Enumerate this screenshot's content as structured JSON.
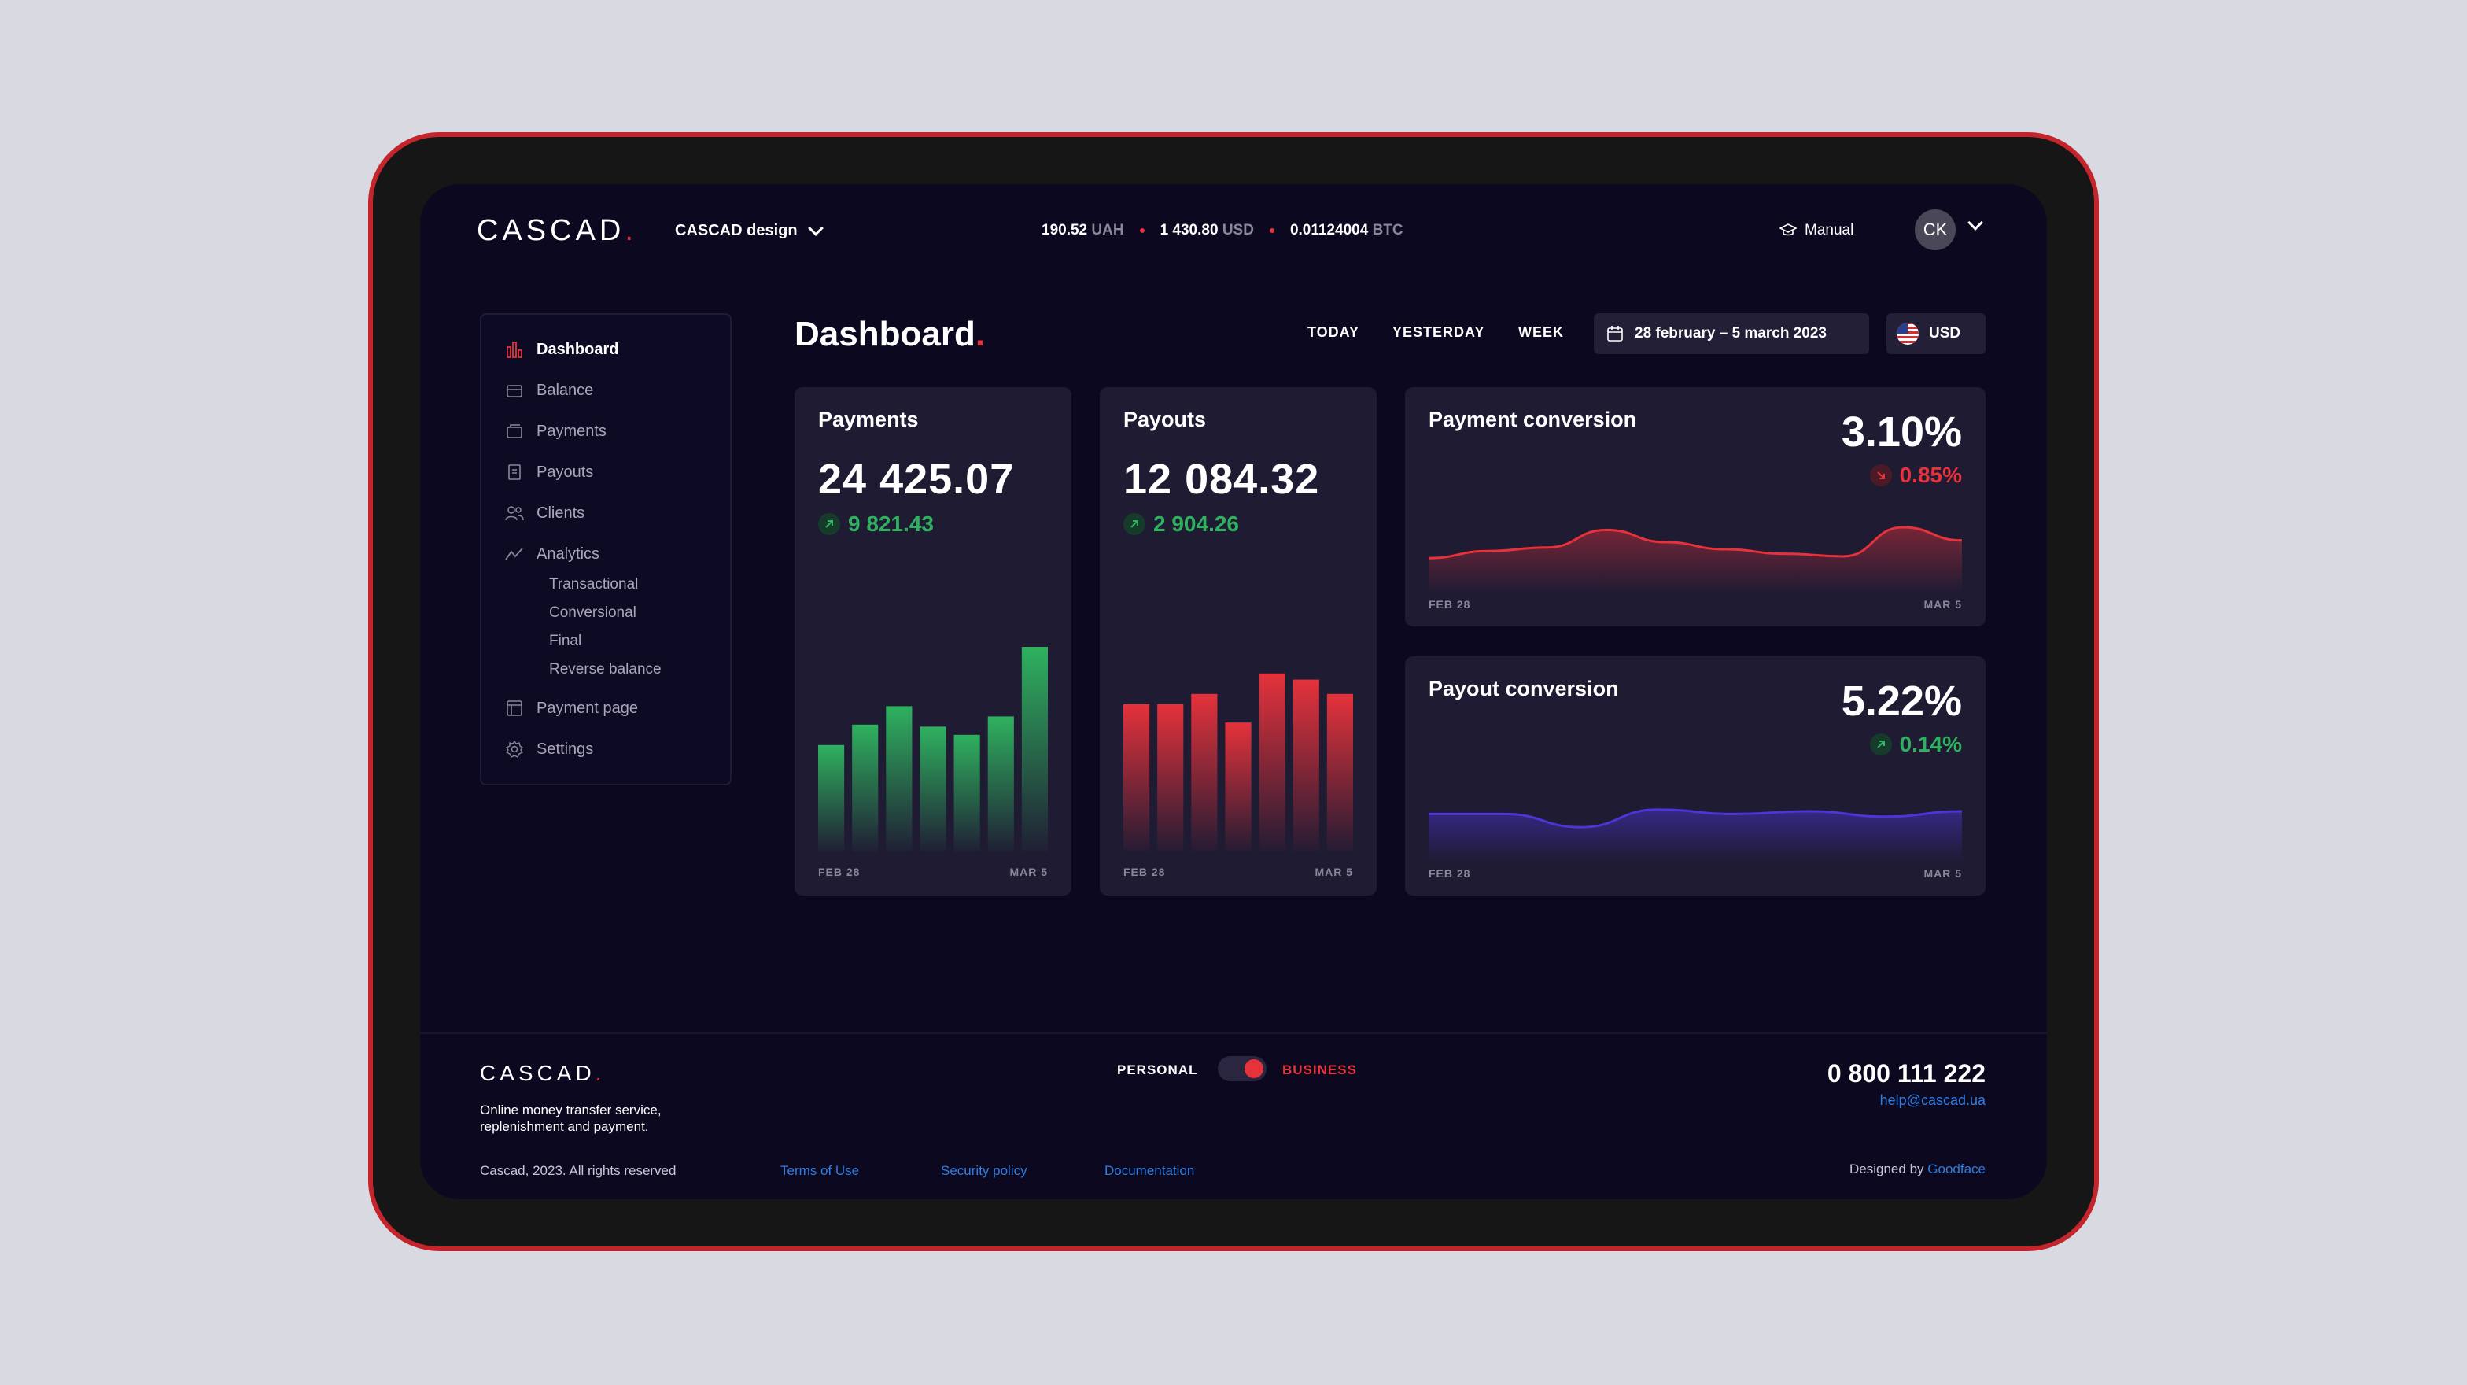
{
  "header": {
    "logo": "CASCAD",
    "logo_dot": ".",
    "organization": "CASCAD design",
    "balances": [
      {
        "amount": "190.52",
        "currency": "UAH"
      },
      {
        "amount": "1 430.80",
        "currency": "USD"
      },
      {
        "amount": "0.01124004",
        "currency": "BTC"
      }
    ],
    "manual_label": "Manual",
    "avatar_initials": "CK"
  },
  "sidebar": {
    "items": [
      {
        "label": "Dashboard",
        "icon": "bar-chart-icon"
      },
      {
        "label": "Balance",
        "icon": "wallet-icon"
      },
      {
        "label": "Payments",
        "icon": "payments-icon"
      },
      {
        "label": "Payouts",
        "icon": "receipt-icon"
      },
      {
        "label": "Clients",
        "icon": "users-icon"
      },
      {
        "label": "Analytics",
        "icon": "trend-icon"
      },
      {
        "label": "Payment page",
        "icon": "page-icon"
      },
      {
        "label": "Settings",
        "icon": "gear-icon"
      }
    ],
    "analytics_subitems": [
      "Transactional",
      "Conversional",
      "Final",
      "Reverse balance"
    ]
  },
  "main": {
    "title": "Dashboard",
    "title_dot": ".",
    "filters": [
      "TODAY",
      "YESTERDAY",
      "WEEK"
    ],
    "date_range": "28 february – 5 march 2023",
    "currency": "USD"
  },
  "cards": {
    "payments": {
      "title": "Payments",
      "value": "24 425.07",
      "delta": "9 821.43",
      "x_start": "FEB 28",
      "x_end": "MAR 5"
    },
    "payouts": {
      "title": "Payouts",
      "value": "12 084.32",
      "delta": "2 904.26",
      "x_start": "FEB 28",
      "x_end": "MAR 5"
    },
    "payment_conversion": {
      "title": "Payment conversion",
      "value": "3.10%",
      "delta": "0.85%",
      "x_start": "FEB 28",
      "x_end": "MAR 5"
    },
    "payout_conversion": {
      "title": "Payout conversion",
      "value": "5.22%",
      "delta": "0.14%",
      "x_start": "FEB 28",
      "x_end": "MAR 5"
    }
  },
  "chart_data": [
    {
      "type": "bar",
      "name": "payments",
      "values": [
        52,
        62,
        71,
        61,
        57,
        66,
        100
      ],
      "ylim": [
        0,
        100
      ],
      "color": "#2fb15f"
    },
    {
      "type": "bar",
      "name": "payouts",
      "values": [
        72,
        72,
        77,
        63,
        87,
        84,
        77
      ],
      "ylim": [
        0,
        100
      ],
      "color": "#e5323b"
    },
    {
      "type": "area",
      "name": "payment_conversion",
      "values": [
        40,
        48,
        52,
        72,
        58,
        50,
        45,
        42,
        75,
        60
      ],
      "ylim": [
        0,
        100
      ],
      "color": "#e5323b"
    },
    {
      "type": "area",
      "name": "payout_conversion",
      "values": [
        55,
        55,
        40,
        60,
        55,
        58,
        52,
        58
      ],
      "ylim": [
        0,
        100
      ],
      "color": "#4b35d6"
    }
  ],
  "footer": {
    "logo": "CASCAD",
    "logo_dot": ".",
    "description": "Online money transfer service, replenishment and payment.",
    "copyright": "Cascad, 2023. All rights reserved",
    "links": [
      "Terms of Use",
      "Security policy",
      "Documentation"
    ],
    "toggle_left": "PERSONAL",
    "toggle_right": "BUSINESS",
    "phone": "0 800 111 222",
    "email": "help@cascad.ua",
    "designed_by_prefix": "Designed by",
    "designed_by": "Goodface"
  },
  "colors": {
    "accent": "#e5323b",
    "positive": "#2fb15f",
    "link": "#2e7de0",
    "background": "#0b0820",
    "card": "#1f1b33"
  }
}
